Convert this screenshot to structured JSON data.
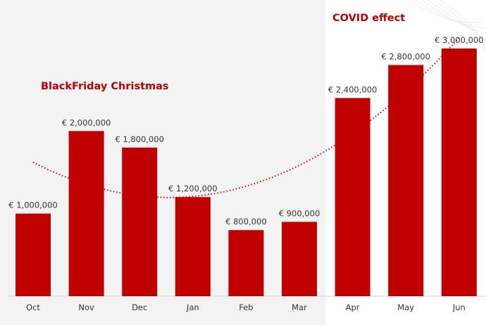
{
  "chart_data": {
    "type": "bar",
    "categories": [
      "Oct",
      "Nov",
      "Dec",
      "Jan",
      "Feb",
      "Mar",
      "Apr",
      "May",
      "Jun"
    ],
    "values": [
      1000000,
      2000000,
      1800000,
      1200000,
      800000,
      900000,
      2400000,
      2800000,
      3000000
    ],
    "value_labels": [
      "€ 1,000,000",
      "€ 2,000,000",
      "€ 1,800,000",
      "€ 1,200,000",
      "€ 800,000",
      "€ 900,000",
      "€ 2,400,000",
      "€ 2,800,000",
      "€ 3,000,000"
    ],
    "ylim": [
      0,
      3400000
    ],
    "grid": false,
    "trendline": {
      "style": "dotted",
      "type": "polynomial",
      "color": "#c00000"
    },
    "annotations": [
      {
        "text": "BlackFriday Christmas",
        "near": "Nov"
      },
      {
        "text": "COVID effect",
        "near": "Apr"
      }
    ],
    "highlight_region": {
      "from": "Apr",
      "to": "Jun",
      "background": "#ffffff"
    },
    "colors": {
      "bar": "#c00000",
      "annotation": "#b50000",
      "background": "#f3f3f3",
      "highlight": "#ffffff",
      "axis": "#d0d0d0"
    }
  }
}
